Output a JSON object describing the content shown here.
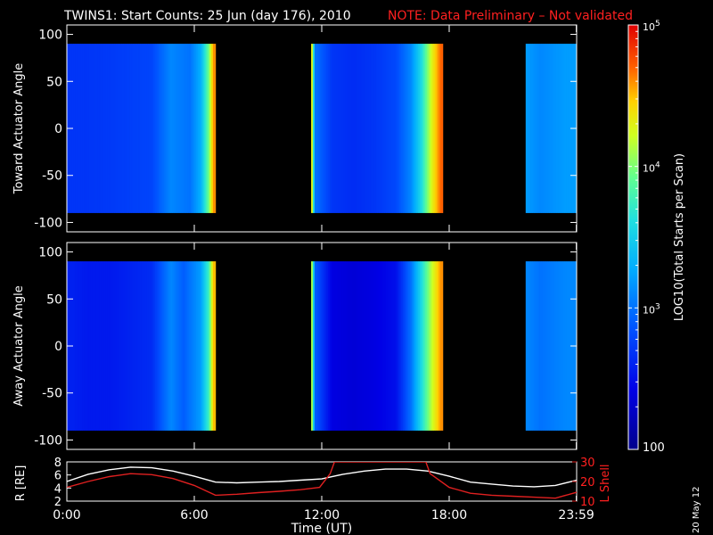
{
  "title": "TWINS1: Start Counts: 25 Jun (day 176), 2010",
  "note": "NOTE: Data Preliminary – Not validated",
  "stamp": "20 May 12",
  "colors": {
    "background": "#000000",
    "axes": "#ffffff",
    "note": "#ff2020",
    "r_line": "#ffffff",
    "l_line": "#e02020"
  },
  "chart_data": [
    {
      "type": "heatmap",
      "name": "toward",
      "ylabel": "Toward Actuator Angle",
      "ylim": [
        -110,
        110
      ],
      "yticks": [
        -100,
        -50,
        0,
        50,
        100
      ],
      "xlim": [
        0,
        24
      ],
      "xticks": [
        0,
        6,
        12,
        18,
        23.983
      ],
      "data_intervals_hours": [
        [
          0,
          7.0
        ],
        [
          11.5,
          17.7
        ],
        [
          21.6,
          24
        ]
      ],
      "log10_counts_by_hour": [
        [
          0,
          2.7
        ],
        [
          1,
          2.7
        ],
        [
          2,
          2.72
        ],
        [
          3,
          2.75
        ],
        [
          4,
          2.78
        ],
        [
          4.9,
          3.1
        ],
        [
          5.3,
          3.05
        ],
        [
          5.8,
          3.0
        ],
        [
          6.3,
          3.3
        ],
        [
          6.7,
          4.0
        ],
        [
          6.9,
          4.6
        ],
        [
          11.5,
          4.6
        ],
        [
          11.7,
          3.0
        ],
        [
          12.5,
          2.7
        ],
        [
          13.5,
          2.65
        ],
        [
          14.5,
          2.7
        ],
        [
          15.5,
          2.8
        ],
        [
          16.2,
          3.1
        ],
        [
          16.7,
          3.6
        ],
        [
          17.2,
          4.3
        ],
        [
          17.6,
          4.7
        ],
        [
          21.6,
          3.2
        ],
        [
          22.3,
          3.1
        ],
        [
          23.5,
          3.2
        ]
      ],
      "grid": false
    },
    {
      "type": "heatmap",
      "name": "away",
      "ylabel": "Away Actuator Angle",
      "ylim": [
        -110,
        110
      ],
      "yticks": [
        -100,
        -50,
        0,
        50,
        100
      ],
      "xlim": [
        0,
        24
      ],
      "xticks": [
        0,
        6,
        12,
        18,
        23.983
      ],
      "data_intervals_hours": [
        [
          0,
          7.0
        ],
        [
          11.5,
          17.7
        ],
        [
          21.6,
          24
        ]
      ],
      "log10_counts_by_hour": [
        [
          0,
          2.6
        ],
        [
          1,
          2.55
        ],
        [
          2,
          2.55
        ],
        [
          3,
          2.6
        ],
        [
          4,
          2.65
        ],
        [
          4.9,
          3.1
        ],
        [
          5.5,
          2.9
        ],
        [
          6.3,
          3.2
        ],
        [
          6.7,
          3.8
        ],
        [
          6.9,
          4.5
        ],
        [
          11.5,
          4.4
        ],
        [
          11.7,
          2.9
        ],
        [
          12.5,
          2.4
        ],
        [
          13.5,
          2.35
        ],
        [
          14.5,
          2.4
        ],
        [
          15.5,
          2.5
        ],
        [
          16.2,
          3.0
        ],
        [
          16.7,
          3.6
        ],
        [
          17.2,
          4.2
        ],
        [
          17.6,
          4.6
        ],
        [
          21.6,
          3.1
        ],
        [
          22.3,
          3.0
        ],
        [
          23.5,
          3.1
        ]
      ],
      "grid": false
    },
    {
      "type": "line",
      "name": "orbit",
      "xlabel": "Time (UT)",
      "xlim": [
        0,
        24
      ],
      "xtick_labels": [
        "0:00",
        "6:00",
        "12:00",
        "18:00",
        "23:59"
      ],
      "xticks": [
        0,
        6,
        12,
        18,
        23.983
      ],
      "left_axis": {
        "label": "R [RE]",
        "ylim": [
          2,
          8
        ],
        "yticks": [
          2,
          4,
          6,
          8
        ]
      },
      "right_axis": {
        "label": "L Shell",
        "ylim": [
          10,
          30
        ],
        "yticks": [
          10,
          20,
          30
        ]
      },
      "series": [
        {
          "axis": "left",
          "x": [
            0,
            1,
            2,
            3,
            4,
            5,
            6,
            7,
            8,
            9,
            10,
            11,
            12,
            13,
            14,
            15,
            16,
            17,
            18,
            19,
            20,
            21,
            22,
            23,
            24
          ],
          "values": [
            5.0,
            6.1,
            6.8,
            7.2,
            7.1,
            6.6,
            5.8,
            4.9,
            4.8,
            4.9,
            5.0,
            5.2,
            5.4,
            6.1,
            6.6,
            6.9,
            6.9,
            6.6,
            5.8,
            4.9,
            4.6,
            4.3,
            4.2,
            4.4,
            5.2
          ]
        },
        {
          "axis": "right",
          "x": [
            0,
            1,
            2,
            3,
            4,
            5,
            6,
            7,
            8,
            9,
            10,
            11,
            11.9,
            12.4,
            12.6,
            16.9,
            17.1,
            18,
            19,
            20,
            21,
            22,
            23,
            24
          ],
          "values": [
            17,
            20,
            22.5,
            24,
            23.5,
            21.5,
            18,
            13,
            13.5,
            14.3,
            15,
            15.8,
            17,
            24,
            30,
            30,
            24,
            17,
            14,
            13,
            12.5,
            12,
            11.5,
            14.5
          ]
        }
      ]
    },
    {
      "type": "colorbar",
      "label": "LOG10(Total Starts per Scan)",
      "scale": "log",
      "range": [
        100,
        100000
      ],
      "tick_labels": [
        "10^5",
        "10^4",
        "10^3",
        "100"
      ]
    }
  ]
}
